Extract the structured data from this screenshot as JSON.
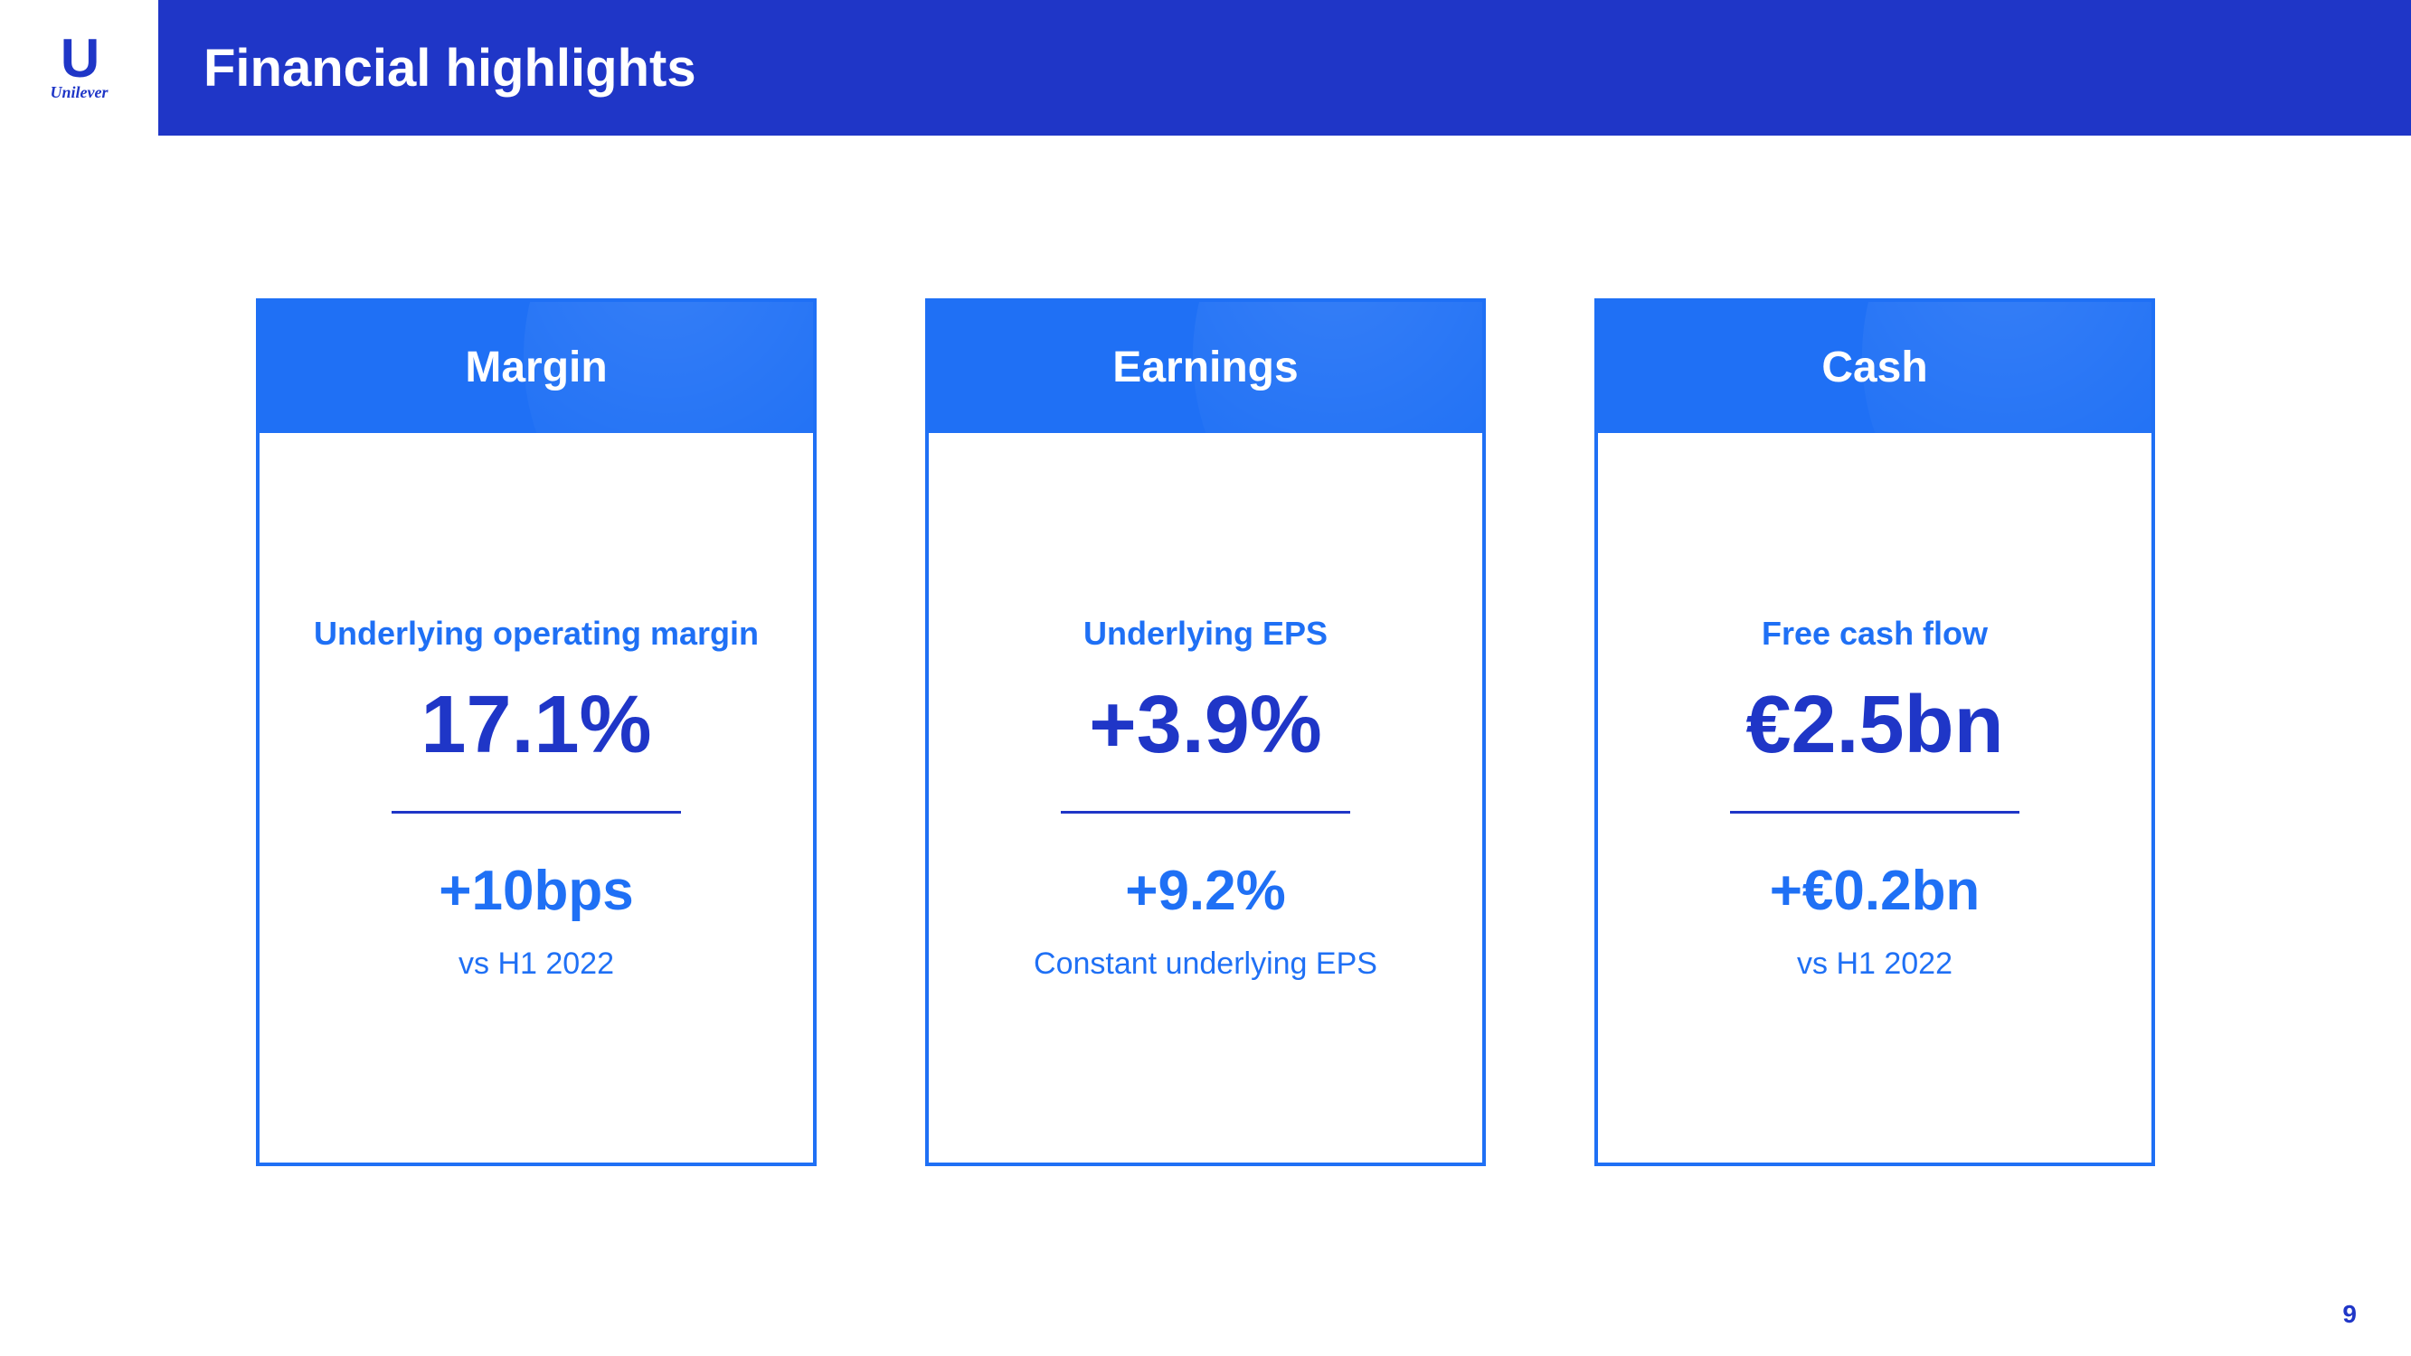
{
  "header": {
    "logo_letter": "U",
    "logo_script": "Unilever",
    "title": "Financial highlights"
  },
  "colors": {
    "brand_dark": "#1f36c7",
    "brand_light": "#1f70f5",
    "white": "#ffffff"
  },
  "cards": [
    {
      "title": "Margin",
      "top_label": "Underlying operating margin",
      "main_value": "17.1%",
      "sub_value": "+10bps",
      "bottom_label": "vs H1 2022"
    },
    {
      "title": "Earnings",
      "top_label": "Underlying EPS",
      "main_value": "+3.9%",
      "sub_value": "+9.2%",
      "bottom_label": "Constant underlying EPS"
    },
    {
      "title": "Cash",
      "top_label": "Free cash flow",
      "main_value": "€2.5bn",
      "sub_value": "+€0.2bn",
      "bottom_label": "vs H1 2022"
    }
  ],
  "page_number": "9"
}
